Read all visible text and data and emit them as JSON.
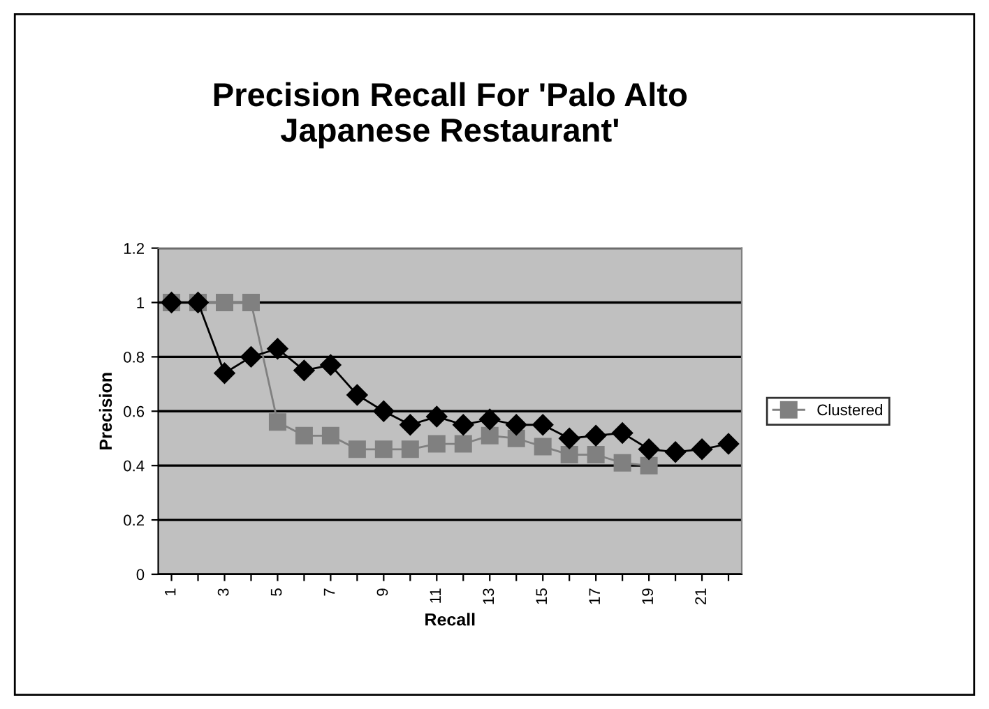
{
  "chart_data": {
    "type": "line",
    "title": "Precision Recall For 'Palo Alto\nJapanese Restaurant'",
    "xlabel": "Recall",
    "ylabel": "Precision",
    "categories": [
      "1",
      null,
      "3",
      null,
      "5",
      null,
      "7",
      null,
      "9",
      null,
      "11",
      null,
      "13",
      null,
      "15",
      null,
      "17",
      null,
      "19",
      null,
      "21",
      null
    ],
    "series": [
      {
        "color": "#000000",
        "marker": "diamond",
        "values": [
          1,
          1,
          0.74,
          0.8,
          0.83,
          0.75,
          0.77,
          0.66,
          0.6,
          0.55,
          0.58,
          0.55,
          0.57,
          0.55,
          0.55,
          0.5,
          0.51,
          0.52,
          0.46,
          0.45,
          0.46,
          0.48
        ]
      },
      {
        "name": "Clustered",
        "color": "#808080",
        "marker": "square",
        "values": [
          1,
          1,
          1,
          1,
          0.56,
          0.51,
          0.51,
          0.46,
          0.46,
          0.46,
          0.48,
          0.48,
          0.51,
          0.5,
          0.47,
          0.44,
          0.44,
          0.41,
          0.4,
          null,
          null,
          null
        ]
      }
    ],
    "ylim": [
      0,
      1.2
    ],
    "yticks": [
      0,
      0.2,
      0.4,
      0.6,
      0.8,
      1,
      1.2
    ],
    "grid": "y",
    "legend": "right",
    "line_style": "solid"
  }
}
